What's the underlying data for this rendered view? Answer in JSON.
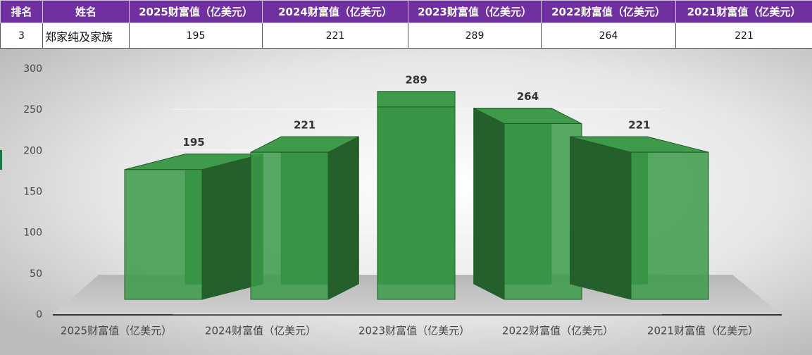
{
  "table": {
    "header": [
      "排名",
      "姓名",
      "2025财富值（亿美元）",
      "2024财富值（亿美元）",
      "2023财富值（亿美元）",
      "2022财富值（亿美元）",
      "2021财富值（亿美元）"
    ],
    "rows": [
      [
        "3",
        "郑家纯及家族",
        "195",
        "221",
        "289",
        "264",
        "221"
      ]
    ]
  },
  "chart_data": {
    "type": "bar3d",
    "categories": [
      "2025财富值（亿美元）",
      "2024财富值（亿美元）",
      "2023财富值（亿美元）",
      "2022财富值（亿美元）",
      "2021财富值（亿美元）"
    ],
    "values": [
      195,
      221,
      289,
      264,
      221
    ],
    "color": "#3a9a48",
    "ylim": [
      0,
      300
    ],
    "yticks": [
      0,
      50,
      100,
      150,
      200,
      250,
      300
    ],
    "grid": true
  }
}
